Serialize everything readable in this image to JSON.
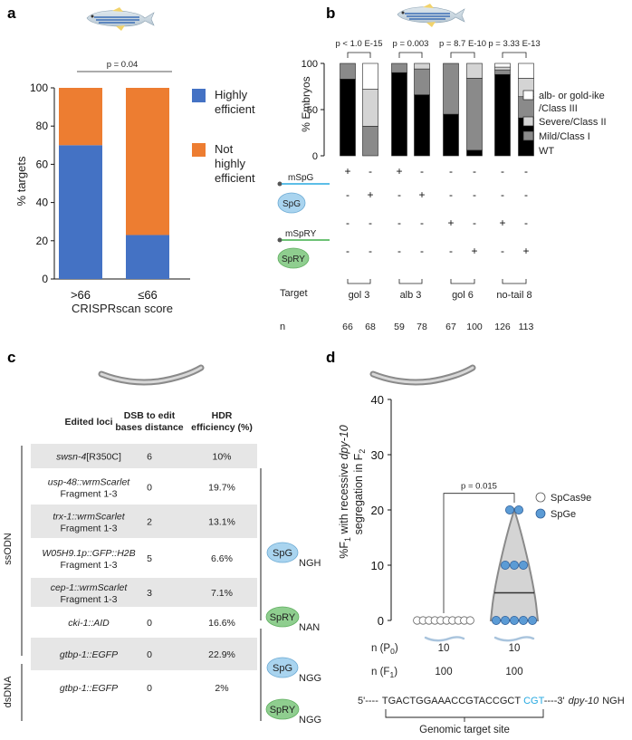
{
  "panels": {
    "a": "a",
    "b": "b",
    "c": "c",
    "d": "d"
  },
  "colors": {
    "blue": "#4472c4",
    "orange": "#ed7d31",
    "dot_blue": "#5b9bd5",
    "cyan": "#27a9e1",
    "spg_fill": "#a9d4ef",
    "spry_fill": "#8fce8f",
    "row_gray": "#e6e6e6"
  },
  "panel_a": {
    "chart_data": {
      "type": "bar",
      "stacked": true,
      "categories": [
        ">66",
        "≤66"
      ],
      "series": [
        {
          "name": "Highly efficient",
          "color": "#4472c4",
          "values": [
            70,
            23
          ]
        },
        {
          "name": "Not highly efficient",
          "color": "#ed7d31",
          "values": [
            30,
            77
          ]
        }
      ],
      "ylabel": "% targets",
      "xlabel": "CRISPRscan score",
      "ylim": [
        0,
        100
      ],
      "yticks": [
        "0",
        "20",
        "40",
        "60",
        "80",
        "100"
      ],
      "pvalue": "p = 0.04",
      "legend": [
        "Highly efficient",
        "Not highly efficient"
      ]
    }
  },
  "panel_b": {
    "chart_data": {
      "type": "bar",
      "stacked": true,
      "ylabel": "% Embryos",
      "ylim": [
        0,
        100
      ],
      "yticks": [
        "0",
        "50",
        "100"
      ],
      "bars": [
        {
          "target": "gol 3",
          "n": "66",
          "wt": 83,
          "mild": 17,
          "severe": 0,
          "alb": 0
        },
        {
          "target": "gol 3",
          "n": "68",
          "wt": 0,
          "mild": 32,
          "severe": 40,
          "alb": 28
        },
        {
          "target": "alb 3",
          "n": "59",
          "wt": 90,
          "mild": 10,
          "severe": 0,
          "alb": 0
        },
        {
          "target": "alb 3",
          "n": "78",
          "wt": 66,
          "mild": 28,
          "severe": 6,
          "alb": 0
        },
        {
          "target": "gol 6",
          "n": "67",
          "wt": 45,
          "mild": 55,
          "severe": 0,
          "alb": 0
        },
        {
          "target": "gol 6",
          "n": "100",
          "wt": 6,
          "mild": 78,
          "severe": 16,
          "alb": 0
        },
        {
          "target": "no-tail 8",
          "n": "126",
          "wt": 88,
          "mild": 5,
          "severe": 3,
          "alb": 4
        },
        {
          "target": "no-tail 8",
          "n": "113",
          "wt": 41,
          "mild": 23,
          "severe": 20,
          "alb": 16
        }
      ],
      "legend": [
        "alb- or gold-ike /Class III",
        "Severe/Class II",
        "Mild/Class I",
        "WT"
      ],
      "legend_line1": "alb- or gold-ike",
      "legend_line2": "/Class III",
      "legend_severe": "Severe/Class II",
      "legend_mild": "Mild/Class I",
      "legend_wt": "WT",
      "pvalues": [
        "p < 1.0 E-15",
        "p = 0.003",
        "p = 8.7 E-10",
        "p = 3.33 E-13"
      ],
      "targets": [
        "gol 3",
        "alb 3",
        "gol 6",
        "no-tail 8"
      ],
      "n_values": [
        "66",
        "68",
        "59",
        "78",
        "67",
        "100",
        "126",
        "113"
      ],
      "rows": [
        {
          "label": "mSpG",
          "signs": [
            "+",
            "-",
            "+",
            "-",
            "-",
            "-",
            "-",
            "-"
          ]
        },
        {
          "label": "SpG",
          "signs": [
            "-",
            "+",
            "-",
            "+",
            "-",
            "-",
            "-",
            "-"
          ]
        },
        {
          "label": "mSpRY",
          "signs": [
            "-",
            "-",
            "-",
            "-",
            "+",
            "-",
            "+",
            "-"
          ]
        },
        {
          "label": "SpRY",
          "signs": [
            "-",
            "-",
            "-",
            "-",
            "-",
            "+",
            "-",
            "+"
          ]
        }
      ],
      "target_label": "Target",
      "n_label": "n"
    }
  },
  "panel_c": {
    "headers": {
      "loci": "Edited loci",
      "dsb1": "DSB to edit",
      "dsb2": "bases distance",
      "hdr1": "HDR",
      "hdr2": "efficiency (%)"
    },
    "rows": [
      {
        "locus": "swsn-4",
        "suffix": "[R350C]",
        "frag": "",
        "dist": "6",
        "eff": "10%"
      },
      {
        "locus": "usp-48::wrmScarlet",
        "suffix": "",
        "frag": "Fragment 1-3",
        "dist": "0",
        "eff": "19.7%"
      },
      {
        "locus": "trx-1::wrmScarlet",
        "suffix": "",
        "frag": "Fragment 1-3",
        "dist": "2",
        "eff": "13.1%"
      },
      {
        "locus": "W05H9.1p::GFP::H2B",
        "suffix": "",
        "frag": "Fragment 1-3",
        "dist": "5",
        "eff": "6.6%"
      },
      {
        "locus": "cep-1::wrmScarlet",
        "suffix": "",
        "frag": "Fragment 1-3",
        "dist": "3",
        "eff": "7.1%"
      },
      {
        "locus": "cki-1::AID",
        "suffix": "",
        "frag": "",
        "dist": "0",
        "eff": "16.6%"
      },
      {
        "locus": "gtbp-1::EGFP",
        "suffix": "",
        "frag": "",
        "dist": "0",
        "eff": "22.9%"
      },
      {
        "locus": "gtbp-1::EGFP",
        "suffix": "",
        "frag": "",
        "dist": "0",
        "eff": "2%"
      }
    ],
    "side_labels": {
      "ssodn": "ssODN",
      "dsdna": "dsDNA"
    },
    "enzymes": [
      {
        "name": "SpG",
        "pam": "NGH"
      },
      {
        "name": "SpRY",
        "pam": "NAN"
      },
      {
        "name": "SpG",
        "pam": "NGG"
      },
      {
        "name": "SpRY",
        "pam": "NGG"
      }
    ]
  },
  "panel_d": {
    "chart_data": {
      "type": "scatter",
      "ylabel_pre": "%F",
      "ylabel_sub1": "1",
      "ylabel_mid": " with recessive ",
      "ylabel_gene": "dpy-10",
      "ylabel_line2": "segregation in F",
      "ylabel_sub2": "2",
      "ylim": [
        0,
        40
      ],
      "yticks": [
        "0",
        "10",
        "20",
        "30",
        "40"
      ],
      "series": [
        {
          "name": "SpCas9e",
          "values": [
            0,
            0,
            0,
            0,
            0,
            0,
            0,
            0,
            0,
            0
          ]
        },
        {
          "name": "SpGe",
          "values": [
            20,
            20,
            10,
            10,
            10,
            0,
            0,
            0,
            0,
            0
          ],
          "median": 5
        }
      ],
      "pvalue": "p = 0.015",
      "n_p0_label": "n (P",
      "n_p0_sub": "0",
      "n_f1_label": "n (F",
      "n_f1_sub": "1",
      "n_p0": [
        "10",
        "10"
      ],
      "n_f1": [
        "100",
        "100"
      ]
    },
    "sequence": {
      "prefix": "5'----",
      "main": "TGACTGGAAACCGTACCGCT",
      "pam": "CGT",
      "suffix": "----3'",
      "gene": "dpy-10",
      "pam_label": "NGH"
    },
    "target_site_label": "Genomic target site"
  }
}
